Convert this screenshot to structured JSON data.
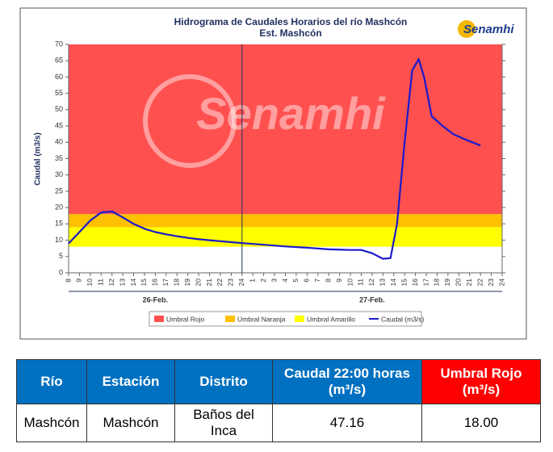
{
  "chart_data": {
    "type": "line",
    "title": "Hidrograma de Caudales Horarios del río Mashcón",
    "subtitle": "Est. Mashcón",
    "logo": "Senamhi",
    "watermark": "Senamhi",
    "ylabel": "Caudal  (m3/s)",
    "ylim": [
      0,
      70
    ],
    "yticks": [
      0,
      5,
      10,
      15,
      20,
      25,
      30,
      35,
      40,
      45,
      50,
      55,
      60,
      65,
      70
    ],
    "xlim": [
      8,
      48
    ],
    "xticks": [
      8,
      9,
      10,
      11,
      12,
      13,
      14,
      15,
      16,
      17,
      18,
      19,
      20,
      21,
      22,
      23,
      24,
      {
        "value": 25,
        "label": "1"
      },
      {
        "value": 26,
        "label": "2"
      },
      {
        "value": 27,
        "label": "3"
      },
      {
        "value": 28,
        "label": "4"
      },
      {
        "value": 29,
        "label": "5"
      },
      {
        "value": 30,
        "label": "6"
      },
      {
        "value": 31,
        "label": "7"
      },
      {
        "value": 32,
        "label": "8"
      },
      {
        "value": 33,
        "label": "9"
      },
      {
        "value": 34,
        "label": "10"
      },
      {
        "value": 35,
        "label": "11"
      },
      {
        "value": 36,
        "label": "12"
      },
      {
        "value": 37,
        "label": "13"
      },
      {
        "value": 38,
        "label": "14"
      },
      {
        "value": 39,
        "label": "15"
      },
      {
        "value": 40,
        "label": "16"
      },
      {
        "value": 41,
        "label": "17"
      },
      {
        "value": 42,
        "label": "18"
      },
      {
        "value": 43,
        "label": "19"
      },
      {
        "value": 44,
        "label": "20"
      },
      {
        "value": 45,
        "label": "21"
      },
      {
        "value": 46,
        "label": "22"
      },
      {
        "value": 47,
        "label": "23"
      },
      {
        "value": 48,
        "label": "24"
      }
    ],
    "days": [
      {
        "label": "26-Feb.",
        "start": 8,
        "end": 24
      },
      {
        "label": "27-Feb.",
        "start": 24,
        "end": 48
      }
    ],
    "thresholds": [
      {
        "name": "Umbral Rojo",
        "color": "#ff5050",
        "value": 18
      },
      {
        "name": "Umbral Naranja",
        "color": "#ffc000",
        "value": 14
      },
      {
        "name": "Umbral Amarillo",
        "color": "#ffff00",
        "value": 8
      }
    ],
    "x": [
      8,
      9,
      10,
      11,
      12,
      13,
      14,
      15,
      16,
      17,
      18,
      19,
      20,
      21,
      22,
      23,
      24,
      26,
      28,
      30,
      32,
      34,
      35,
      36,
      37,
      37.7,
      38.3,
      39,
      39.7,
      40.3,
      40.8,
      41.5,
      42.5,
      43.5,
      44.5,
      46
    ],
    "series": [
      {
        "name": "Caudal (m3/s)",
        "color": "#1a1acc",
        "values": [
          9,
          12.5,
          16,
          18.5,
          18.8,
          17,
          15,
          13.5,
          12.5,
          11.8,
          11.2,
          10.7,
          10.3,
          10,
          9.7,
          9.4,
          9.1,
          8.6,
          8.1,
          7.7,
          7.2,
          7,
          7,
          6,
          4.3,
          4.5,
          15,
          40,
          62,
          65.5,
          60,
          48,
          45,
          42.5,
          41,
          39
        ]
      }
    ]
  },
  "table": {
    "headers": [
      "Río",
      "Estación",
      "Distrito",
      [
        "Caudal  22:00 horas",
        "(m³/s)"
      ],
      [
        "Umbral Rojo",
        "(m³/s)"
      ]
    ],
    "rows": [
      [
        "Mashcón",
        "Mashcón",
        "Baños del Inca",
        "47.16",
        "18.00"
      ]
    ]
  }
}
